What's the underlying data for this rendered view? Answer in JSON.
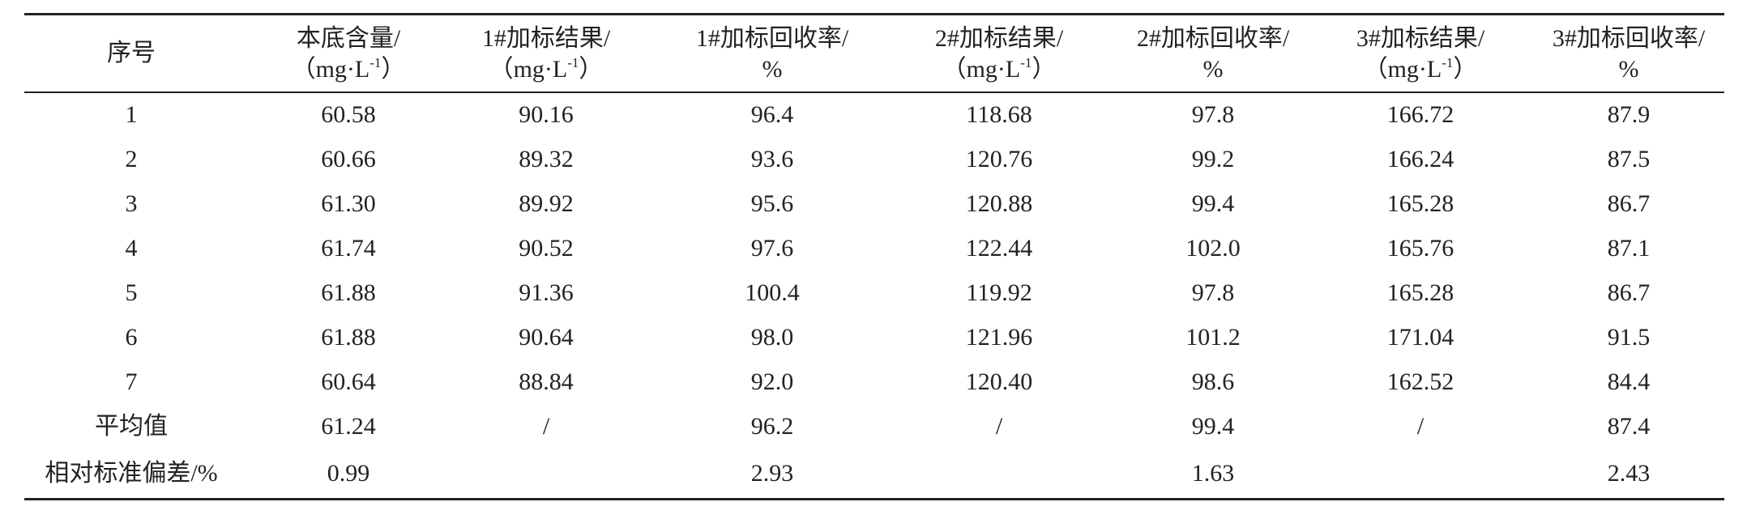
{
  "table": {
    "header": [
      {
        "line1": "序号"
      },
      {
        "line1": "本底含量/",
        "unit": "（mg·L",
        "sup": "-1",
        "close": "）"
      },
      {
        "line1": "1#加标结果/",
        "unit": "（mg·L",
        "sup": "-1",
        "close": "）"
      },
      {
        "line1": "1#加标回收率/",
        "line2": "%"
      },
      {
        "line1": "2#加标结果/",
        "unit": "（mg·L",
        "sup": "-1",
        "close": "）"
      },
      {
        "line1": "2#加标回收率/",
        "line2": "%"
      },
      {
        "line1": "3#加标结果/",
        "unit": "（mg·L",
        "sup": "-1",
        "close": "）"
      },
      {
        "line1": "3#加标回收率/",
        "line2": "%"
      }
    ],
    "rows": [
      [
        "1",
        "60.58",
        "90.16",
        "96.4",
        "118.68",
        "97.8",
        "166.72",
        "87.9"
      ],
      [
        "2",
        "60.66",
        "89.32",
        "93.6",
        "120.76",
        "99.2",
        "166.24",
        "87.5"
      ],
      [
        "3",
        "61.30",
        "89.92",
        "95.6",
        "120.88",
        "99.4",
        "165.28",
        "86.7"
      ],
      [
        "4",
        "61.74",
        "90.52",
        "97.6",
        "122.44",
        "102.0",
        "165.76",
        "87.1"
      ],
      [
        "5",
        "61.88",
        "91.36",
        "100.4",
        "119.92",
        "97.8",
        "165.28",
        "86.7"
      ],
      [
        "6",
        "61.88",
        "90.64",
        "98.0",
        "121.96",
        "101.2",
        "171.04",
        "91.5"
      ],
      [
        "7",
        "60.64",
        "88.84",
        "92.0",
        "120.40",
        "98.6",
        "162.52",
        "84.4"
      ],
      [
        "平均值",
        "61.24",
        "/",
        "96.2",
        "/",
        "99.4",
        "/",
        "87.4"
      ],
      [
        "相对标准偏差/%",
        "0.99",
        null,
        "2.93",
        null,
        "1.63",
        null,
        "2.43"
      ]
    ]
  }
}
